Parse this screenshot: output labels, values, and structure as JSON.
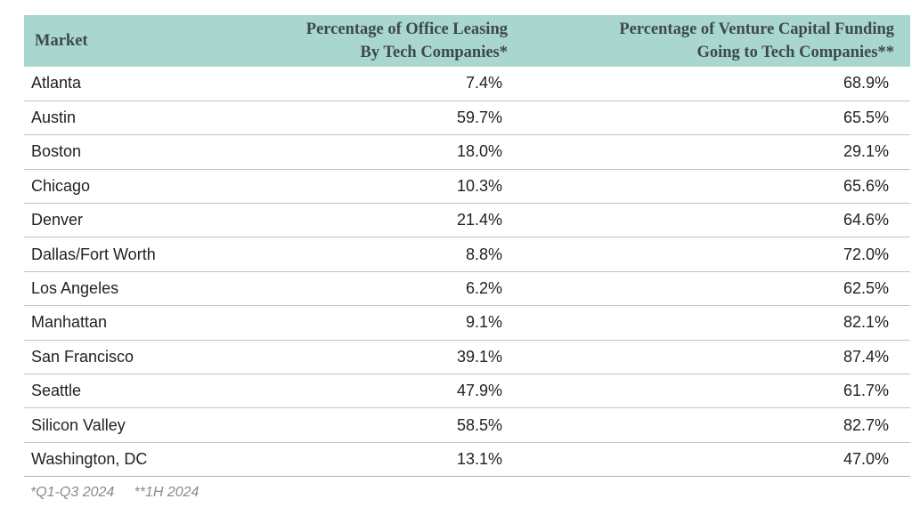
{
  "colors": {
    "header_bg": "#a9d6cf",
    "header_text": "#3d4a48",
    "row_divider": "#c4c4c4",
    "footnote_text": "#8a8a8a"
  },
  "chart_data": {
    "type": "table",
    "columns": [
      "Market",
      [
        "Percentage of Office Leasing",
        "By Tech Companies*"
      ],
      [
        "Percentage of Venture Capital Funding",
        "Going to Tech Companies**"
      ]
    ],
    "rows": [
      {
        "market": "Atlanta",
        "leasing": "7.4%",
        "vc": "68.9%"
      },
      {
        "market": "Austin",
        "leasing": "59.7%",
        "vc": "65.5%"
      },
      {
        "market": "Boston",
        "leasing": "18.0%",
        "vc": "29.1%"
      },
      {
        "market": "Chicago",
        "leasing": "10.3%",
        "vc": "65.6%"
      },
      {
        "market": "Denver",
        "leasing": "21.4%",
        "vc": "64.6%"
      },
      {
        "market": "Dallas/Fort Worth",
        "leasing": "8.8%",
        "vc": "72.0%"
      },
      {
        "market": "Los Angeles",
        "leasing": "6.2%",
        "vc": "62.5%"
      },
      {
        "market": "Manhattan",
        "leasing": "9.1%",
        "vc": "82.1%"
      },
      {
        "market": "San Francisco",
        "leasing": "39.1%",
        "vc": "87.4%"
      },
      {
        "market": "Seattle",
        "leasing": "47.9%",
        "vc": "61.7%"
      },
      {
        "market": "Silicon Valley",
        "leasing": "58.5%",
        "vc": "82.7%"
      },
      {
        "market": "Washington, DC",
        "leasing": "13.1%",
        "vc": "47.0%"
      }
    ],
    "footnote": "*Q1-Q3 2024     **1H 2024"
  }
}
